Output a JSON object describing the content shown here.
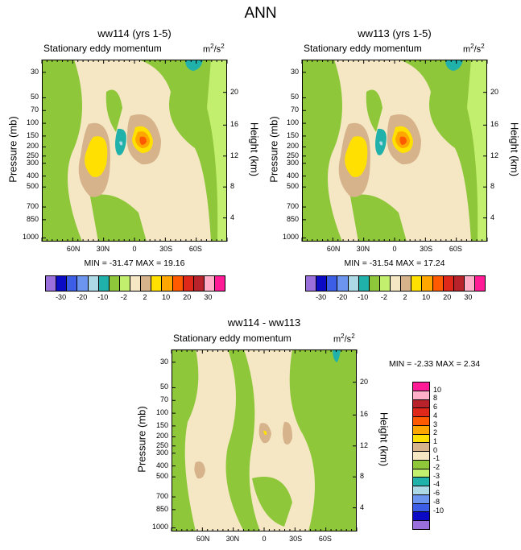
{
  "figure_title": "ANN",
  "chart_data": [
    {
      "type": "contour",
      "title": "ww114 (yrs 1-5)",
      "subtitle": "Stationary eddy momentum",
      "units_base": "m",
      "units_exp1": "2",
      "units_mid": "/s",
      "units_exp2": "2",
      "ylabel_left": "Pressure (mb)",
      "ylabel_right": "Height (km)",
      "pressure_ticks": [
        "30",
        "50",
        "70",
        "100",
        "150",
        "200",
        "250",
        "300",
        "400",
        "500",
        "700",
        "850",
        "1000"
      ],
      "height_ticks": [
        "20",
        "16",
        "12",
        "8",
        "4"
      ],
      "lat_ticks": [
        "60N",
        "30N",
        "0",
        "30S",
        "60S"
      ],
      "stats": "MIN = -31.47   MAX =  19.16"
    },
    {
      "type": "contour",
      "title": "ww113 (yrs 1-5)",
      "subtitle": "Stationary eddy momentum",
      "units_base": "m",
      "units_exp1": "2",
      "units_mid": "/s",
      "units_exp2": "2",
      "ylabel_left": "Pressure (mb)",
      "ylabel_right": "Height (km)",
      "pressure_ticks": [
        "30",
        "50",
        "70",
        "100",
        "150",
        "200",
        "250",
        "300",
        "400",
        "500",
        "700",
        "850",
        "1000"
      ],
      "height_ticks": [
        "20",
        "16",
        "12",
        "8",
        "4"
      ],
      "lat_ticks": [
        "60N",
        "30N",
        "0",
        "30S",
        "60S"
      ],
      "stats": "MIN = -31.54   MAX =  17.24"
    },
    {
      "type": "contour",
      "title": "ww114 - ww113",
      "subtitle": "Stationary eddy momentum",
      "units_base": "m",
      "units_exp1": "2",
      "units_mid": "/s",
      "units_exp2": "2",
      "ylabel_left": "Pressure (mb)",
      "ylabel_right": "Height (km)",
      "pressure_ticks": [
        "30",
        "50",
        "70",
        "100",
        "150",
        "200",
        "250",
        "300",
        "400",
        "500",
        "700",
        "850",
        "1000"
      ],
      "height_ticks": [
        "20",
        "16",
        "12",
        "8",
        "4"
      ],
      "lat_ticks": [
        "60N",
        "30N",
        "0",
        "30S",
        "60S"
      ],
      "stats": "MIN =  -2.33   MAX =   2.34"
    }
  ],
  "colorbar_top": {
    "colors": [
      "#9a6fdc",
      "#0b0bc6",
      "#3c5ee6",
      "#6b95ee",
      "#add9e6",
      "#20b1ab",
      "#8ec83a",
      "#c2ef6e",
      "#f5e6c4",
      "#d6b38b",
      "#ffe000",
      "#ffa600",
      "#ff5a00",
      "#e0281a",
      "#b8222a",
      "#ffb0c8",
      "#ff1a96"
    ],
    "labels": [
      "-30",
      "-20",
      "-10",
      "-2",
      "2",
      "10",
      "20",
      "30"
    ]
  },
  "colorbar_diff": {
    "colors": [
      "#ff1a96",
      "#ffb0c8",
      "#b8222a",
      "#e0281a",
      "#ff5a00",
      "#ffa600",
      "#ffe000",
      "#d6b38b",
      "#f5e6c4",
      "#8ec83a",
      "#c2ef6e",
      "#20b1ab",
      "#add9e6",
      "#6b95ee",
      "#3c5ee6",
      "#0b0bc6",
      "#9a6fdc"
    ],
    "labels": [
      "10",
      "8",
      "6",
      "4",
      "3",
      "2",
      "1",
      "0",
      "-1",
      "-2",
      "-3",
      "-4",
      "-6",
      "-8",
      "-10"
    ]
  },
  "colors": {
    "bg_tan": "#f5e6c4",
    "green": "#8ec83a",
    "light_green": "#c2ef6e",
    "teal": "#20b1ab",
    "light_blue": "#add9e6",
    "brown": "#d6b38b",
    "yellow": "#ffe000",
    "orange": "#ffa600",
    "red_orange": "#ff5a00"
  }
}
